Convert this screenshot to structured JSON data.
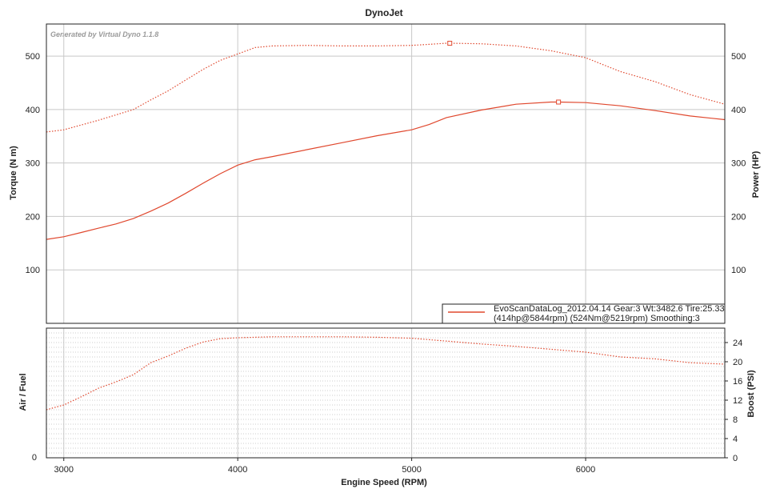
{
  "title": "DynoJet",
  "generator": "Generated by Virtual Dyno 1.1.8",
  "colors": {
    "series": "#e0482e",
    "grid": "#c8c8c8",
    "minor_grid": "#bdbdbd",
    "frame": "#222222"
  },
  "chart_data": [
    {
      "type": "line",
      "panel": "top",
      "xlabel": "",
      "ylabel": "Torque (N m)",
      "ylabel_right": "Power (HP)",
      "xlim": [
        2900,
        6800
      ],
      "ylim": [
        0,
        560
      ],
      "yticks": [
        100,
        200,
        300,
        400,
        500
      ],
      "yticks_right": [
        100,
        200,
        300,
        400,
        500
      ],
      "grid": true,
      "series": [
        {
          "style": "dotted",
          "x": [
            2900,
            3000,
            3200,
            3400,
            3500,
            3600,
            3700,
            3800,
            3900,
            4000,
            4100,
            4200,
            4400,
            4600,
            4800,
            5000,
            5100,
            5200,
            5219,
            5400,
            5600,
            5800,
            6000,
            6100,
            6200,
            6400,
            6600,
            6800
          ],
          "y": [
            358,
            362,
            380,
            400,
            418,
            435,
            455,
            475,
            492,
            504,
            516,
            519,
            520,
            519,
            519,
            520,
            522,
            524,
            524,
            523,
            519,
            510,
            497,
            484,
            471,
            452,
            428,
            410
          ],
          "peak": {
            "x": 5219,
            "y": 524
          }
        },
        {
          "style": "solid",
          "x": [
            2900,
            3000,
            3100,
            3200,
            3300,
            3400,
            3500,
            3600,
            3700,
            3800,
            3900,
            4000,
            4100,
            4200,
            4400,
            4600,
            4800,
            5000,
            5100,
            5200,
            5400,
            5600,
            5800,
            5844,
            6000,
            6200,
            6400,
            6600,
            6800
          ],
          "y": [
            157,
            162,
            170,
            178,
            186,
            196,
            210,
            225,
            243,
            262,
            280,
            296,
            306,
            312,
            325,
            338,
            351,
            362,
            372,
            385,
            399,
            410,
            414,
            414,
            413,
            407,
            398,
            388,
            381
          ],
          "peak": {
            "x": 5844,
            "y": 414
          }
        }
      ],
      "legend": {
        "placement": "bottom-right",
        "line1": "EvoScanDataLog_2012.04.14 Gear:3 Wt:3482.6 Tire:25.33",
        "line2": "(414hp@5844rpm) (524Nm@5219rpm) Smoothing:3"
      }
    },
    {
      "type": "line",
      "panel": "bottom",
      "xlabel": "Engine Speed (RPM)",
      "ylabel": "Air / Fuel",
      "ylabel_right": "Boost (PSI)",
      "xlim": [
        2900,
        6800
      ],
      "xticks": [
        3000,
        4000,
        5000,
        6000
      ],
      "ylim_left": [
        0,
        30
      ],
      "yticks_left": [
        0
      ],
      "ylim": [
        0,
        27
      ],
      "yticks_right": [
        0,
        4,
        8,
        12,
        16,
        20,
        24
      ],
      "grid": true,
      "series": [
        {
          "style": "solid",
          "x": [
            2900,
            3000,
            3100,
            3200,
            3300,
            3400,
            3500,
            3600,
            3700,
            3800,
            3900,
            4000,
            4100,
            4200,
            4400,
            4600,
            4800,
            5000,
            5200,
            5400,
            5600,
            5800,
            6000,
            6200,
            6400,
            6600,
            6800
          ],
          "y": [
            10,
            11,
            12.7,
            14.5,
            15.8,
            17.3,
            19.8,
            21.2,
            22.8,
            24.1,
            24.8,
            25.0,
            25.1,
            25.2,
            25.2,
            25.2,
            25.1,
            24.9,
            24.3,
            23.7,
            23.2,
            22.6,
            22.0,
            21.0,
            20.6,
            19.8,
            19.5
          ]
        }
      ]
    }
  ]
}
